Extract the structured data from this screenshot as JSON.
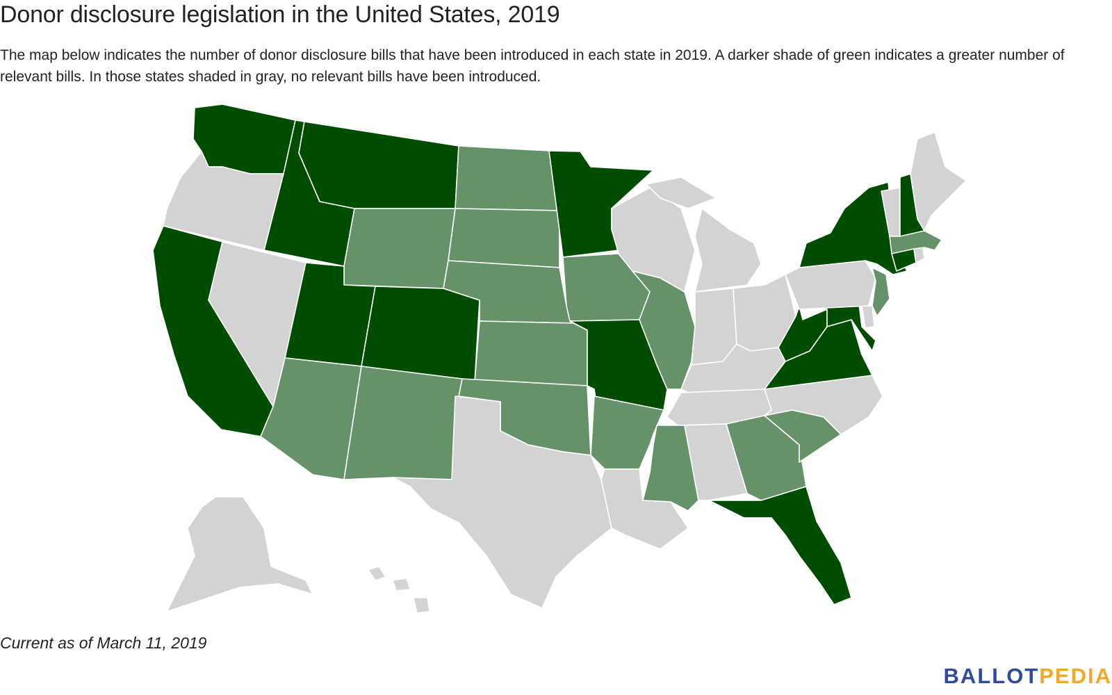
{
  "title": "Donor disclosure legislation in the United States, 2019",
  "subtitle": "The map below indicates the number of donor disclosure bills that have been introduced in each state in 2019. A darker shade of green indicates a greater number of relevant bills. In those states shaded in gray, no relevant bills have been introduced.",
  "footnote": "Current as of March 11, 2019",
  "brand": {
    "part1": "BALLOT",
    "part2": "PEDIA"
  },
  "colors": {
    "dark_green": "#004d00",
    "light_green": "#66926a",
    "gray": "#d3d3d3",
    "brand_blue": "#2f4a9e",
    "brand_orange": "#f4a823"
  },
  "map": {
    "levels": {
      "dark": [
        "WA",
        "ID",
        "MT",
        "CA",
        "UT",
        "CO",
        "MN",
        "MO",
        "NY",
        "NH",
        "CT",
        "WV",
        "VA",
        "MD",
        "FL"
      ],
      "light": [
        "ND",
        "SD",
        "WY",
        "NE",
        "KS",
        "OK",
        "AZ",
        "NM",
        "AR",
        "IA",
        "IL",
        "MS",
        "GA",
        "SC",
        "NJ",
        "MA"
      ],
      "none": [
        "OR",
        "NV",
        "TX",
        "LA",
        "AL",
        "TN",
        "KY",
        "NC",
        "IN",
        "OH",
        "MI",
        "WI",
        "PA",
        "VT",
        "ME",
        "RI",
        "DE",
        "AK",
        "HI"
      ]
    }
  }
}
